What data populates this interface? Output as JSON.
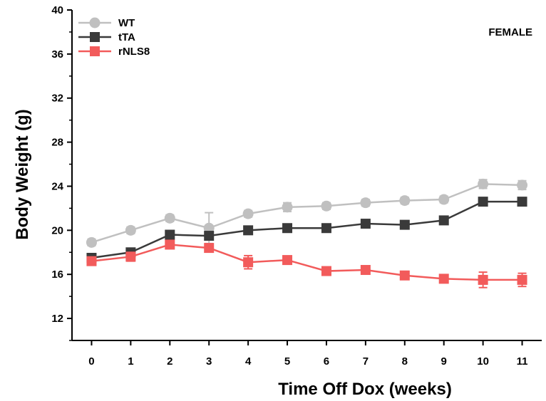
{
  "chart_data": {
    "type": "line",
    "title": "",
    "annotation": "FEMALE",
    "xlabel": "Time Off Dox (weeks)",
    "ylabel": "Body Weight (g)",
    "x": [
      0,
      1,
      2,
      3,
      4,
      5,
      6,
      7,
      8,
      9,
      10,
      11
    ],
    "x_tick_labels": [
      "0",
      "1",
      "2",
      "3",
      "4",
      "5",
      "6",
      "7",
      "8",
      "9",
      "10",
      "11"
    ],
    "xlim": [
      -0.5,
      11.5
    ],
    "ylim": [
      10,
      40
    ],
    "y_ticks": [
      12,
      16,
      20,
      24,
      28,
      32,
      36,
      40
    ],
    "y_tick_labels": [
      "12",
      "16",
      "20",
      "24",
      "28",
      "32",
      "36",
      "40"
    ],
    "grid": false,
    "legend_position": "top-left",
    "series": [
      {
        "name": "WT",
        "marker": "circle",
        "color": "#c0c0c0",
        "values": [
          18.9,
          20.0,
          21.1,
          20.2,
          21.5,
          22.1,
          22.2,
          22.5,
          22.7,
          22.8,
          24.2,
          24.1
        ],
        "errors": [
          0.3,
          0.3,
          0.3,
          1.4,
          0.3,
          0.4,
          0.3,
          0.3,
          0.3,
          0.3,
          0.4,
          0.4
        ]
      },
      {
        "name": "tTA",
        "marker": "square",
        "color": "#3a3a3a",
        "values": [
          17.5,
          18.0,
          19.6,
          19.5,
          20.0,
          20.2,
          20.2,
          20.6,
          20.5,
          20.9,
          22.6,
          22.6
        ],
        "errors": [
          0.3,
          0.3,
          0.3,
          0.3,
          0.3,
          0.3,
          0.3,
          0.3,
          0.3,
          0.3,
          0.3,
          0.3
        ]
      },
      {
        "name": "rNLS8",
        "marker": "square",
        "color": "#f25b5b",
        "values": [
          17.2,
          17.6,
          18.7,
          18.4,
          17.1,
          17.3,
          16.3,
          16.4,
          15.9,
          15.6,
          15.5,
          15.5
        ],
        "errors": [
          0.3,
          0.4,
          0.3,
          0.3,
          0.6,
          0.3,
          0.3,
          0.3,
          0.3,
          0.3,
          0.7,
          0.6
        ]
      }
    ]
  }
}
